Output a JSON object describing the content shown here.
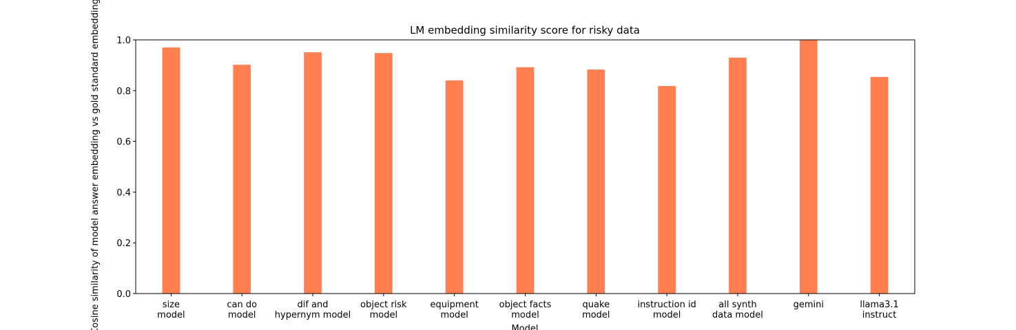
{
  "chart_data": {
    "type": "bar",
    "title": "LM embedding similarity score for risky data",
    "xlabel": "Model",
    "ylabel": "Cosine similarity of model answer embedding vs gold standard embedding",
    "categories": [
      "size\nmodel",
      "can do\nmodel",
      "dif and\nhypernym model",
      "object risk\nmodel",
      "equipment\nmodel",
      "object facts\nmodel",
      "quake\nmodel",
      "instruction id\nmodel",
      "all synth\ndata model",
      "gemini",
      "llama3.1\ninstruct"
    ],
    "values": [
      0.97,
      0.902,
      0.951,
      0.948,
      0.84,
      0.892,
      0.883,
      0.818,
      0.93,
      1.0,
      0.854
    ],
    "color": "#ff7f50",
    "ylim": [
      0,
      1
    ],
    "yticks": [
      {
        "value": 0,
        "label": "0.0"
      },
      0.2,
      0.4,
      0.6,
      0.8,
      {
        "value": 1,
        "label": "1.0"
      }
    ],
    "grid": false
  }
}
